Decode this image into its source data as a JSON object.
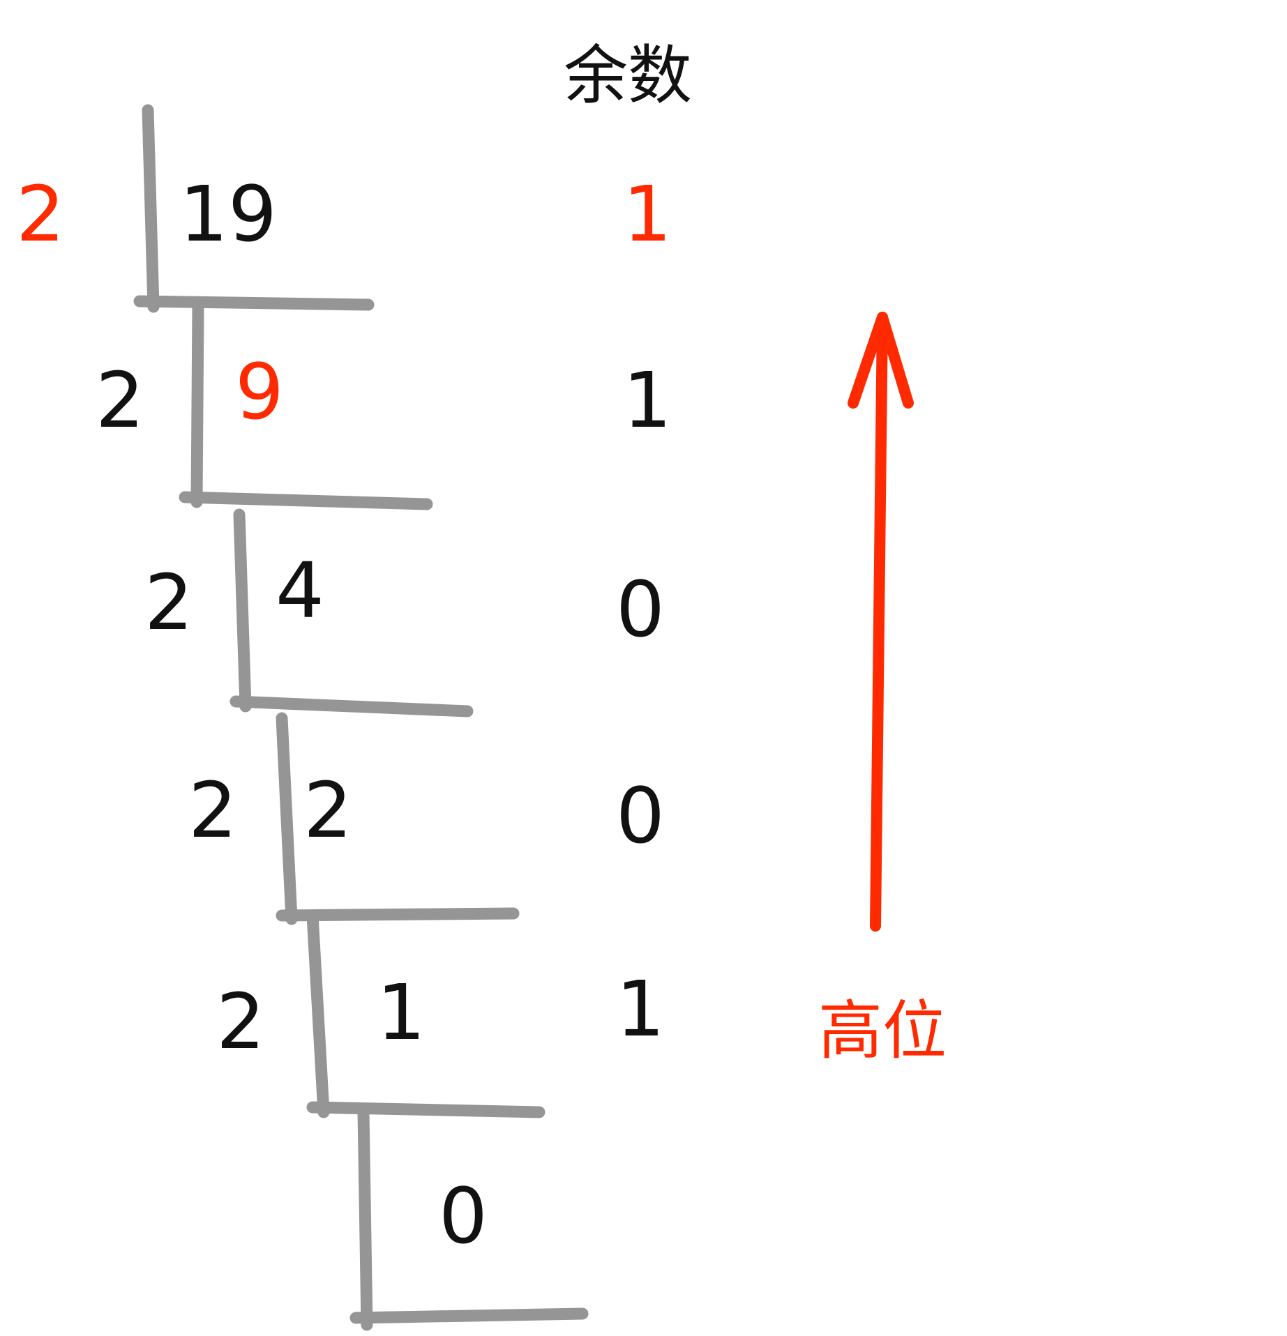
{
  "colors": {
    "ink": "#111111",
    "accent": "#ff2a00",
    "rule": "#959595",
    "background": "#ffffff"
  },
  "header": {
    "remainder_label": "余数"
  },
  "steps": [
    {
      "divisor": "2",
      "dividend": "19",
      "remainder": "1"
    },
    {
      "divisor": "2",
      "dividend": "9",
      "remainder": "1"
    },
    {
      "divisor": "2",
      "dividend": "4",
      "remainder": "0"
    },
    {
      "divisor": "2",
      "dividend": "2",
      "remainder": "0"
    },
    {
      "divisor": "2",
      "dividend": "1",
      "remainder": "1"
    },
    {
      "dividend": "0"
    }
  ],
  "arrow": {
    "label": "高位"
  }
}
